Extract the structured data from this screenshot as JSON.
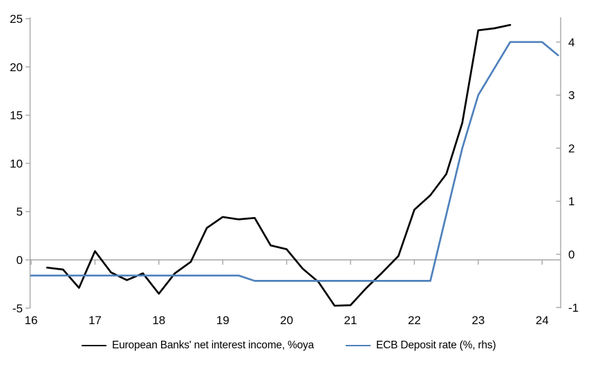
{
  "chart_data": {
    "type": "line",
    "title": "",
    "grid": false,
    "legend_position": "bottom",
    "x_axis": {
      "ticks": [
        "16",
        "17",
        "18",
        "19",
        "20",
        "21",
        "22",
        "23",
        "24"
      ],
      "range": [
        16,
        24.3
      ]
    },
    "y_axis_left": {
      "ticks": [
        "25",
        "20",
        "15",
        "10",
        "5",
        "0",
        "-5"
      ],
      "range": [
        -5,
        25.1
      ],
      "zero_line": true
    },
    "y_axis_right": {
      "ticks": [
        "4",
        "3",
        "2",
        "1",
        "0",
        "-1"
      ],
      "range": [
        -1,
        4.47
      ]
    },
    "colors": {
      "axis": "#a6a6a6",
      "zero_line": "#a6a6a6",
      "tick_label": "#000000",
      "nii_line": "#000000",
      "deposit_rate_line": "#4f81bd"
    },
    "series": [
      {
        "name": "European Banks' net interest income, %oya",
        "axis": "left",
        "color": "#000000",
        "x": [
          16.25,
          16.5,
          16.75,
          17.0,
          17.25,
          17.5,
          17.75,
          18.0,
          18.25,
          18.5,
          18.75,
          19.0,
          19.25,
          19.5,
          19.75,
          20.0,
          20.25,
          20.5,
          20.75,
          21.0,
          21.25,
          21.5,
          21.75,
          22.0,
          22.25,
          22.5,
          22.75,
          23.0,
          23.25,
          23.5
        ],
        "values": [
          -0.8,
          -1.0,
          -2.9,
          0.9,
          -1.3,
          -2.1,
          -1.4,
          -3.5,
          -1.4,
          -0.2,
          3.3,
          4.45,
          4.2,
          4.35,
          1.5,
          1.1,
          -0.9,
          -2.3,
          -4.75,
          -4.7,
          -2.9,
          -1.3,
          0.4,
          5.2,
          6.7,
          8.9,
          14.2,
          23.8,
          24.0,
          24.35
        ]
      },
      {
        "name": "ECB Deposit rate (%, rhs)",
        "axis": "right",
        "color": "#4f81bd",
        "x": [
          16.0,
          19.25,
          19.5,
          22.25,
          22.5,
          22.75,
          23.0,
          23.25,
          23.5,
          24.0,
          24.25
        ],
        "values": [
          -0.4,
          -0.4,
          -0.5,
          -0.5,
          0.75,
          2.0,
          3.0,
          3.5,
          4.0,
          4.0,
          3.75
        ]
      }
    ]
  }
}
